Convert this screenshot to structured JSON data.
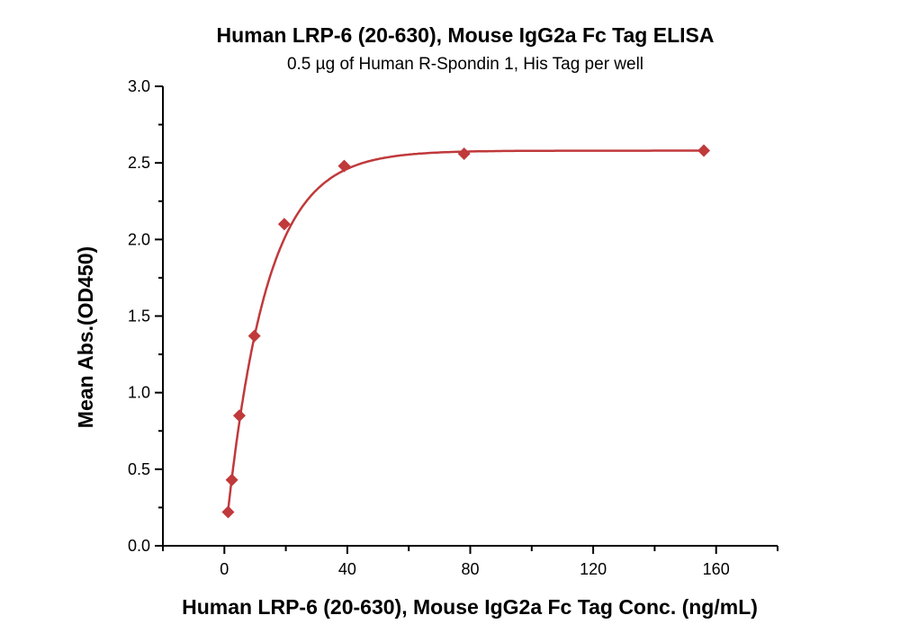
{
  "chart_data": {
    "type": "scatter",
    "title": "Human LRP-6 (20-630), Mouse IgG2a Fc Tag ELISA",
    "subtitle": "0.5 µg of Human R-Spondin 1, His Tag per well",
    "xlabel": "Human LRP-6 (20-630), Mouse IgG2a Fc Tag Conc. (ng/mL)",
    "ylabel": "Mean Abs.(OD450)",
    "xlim": [
      -20,
      180
    ],
    "ylim": [
      0,
      3.0
    ],
    "xticks": [
      0,
      40,
      80,
      120,
      160
    ],
    "xtick_labels": [
      "0",
      "40",
      "80",
      "120",
      "160"
    ],
    "yticks": [
      0,
      0.5,
      1.0,
      1.5,
      2.0,
      2.5,
      3.0
    ],
    "ytick_labels": [
      "0.0",
      "0.5",
      "1.0",
      "1.5",
      "2.0",
      "2.5",
      "3.0"
    ],
    "grid": false,
    "series": [
      {
        "name": "data",
        "marker": "diamond",
        "color": "#c0393b",
        "x": [
          1.22,
          2.44,
          4.88,
          9.77,
          19.5,
          39,
          78,
          156
        ],
        "y": [
          0.22,
          0.43,
          0.85,
          1.37,
          2.1,
          2.48,
          2.56,
          2.58
        ]
      }
    ],
    "fit": {
      "model": "exponential rise",
      "top": 2.58,
      "k": 0.077,
      "x_range": [
        1.22,
        156
      ],
      "color": "#c0393b"
    }
  }
}
